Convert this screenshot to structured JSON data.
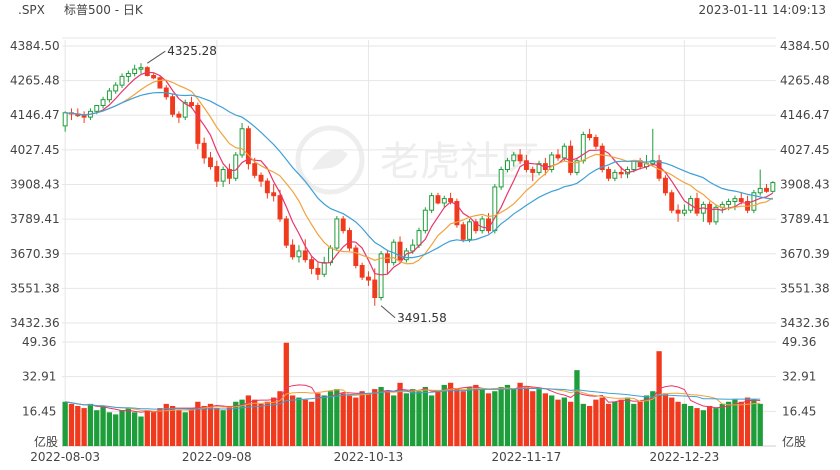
{
  "header": {
    "symbol": ".SPX",
    "title": "标普500 - 日K",
    "timestamp": "2023-01-11 14:09:13"
  },
  "watermark": {
    "text": "老虎社区",
    "icon": "tiger-logo-icon"
  },
  "colors": {
    "up": "#1e9e3a",
    "down": "#f03a1e",
    "ma5": "#e8356c",
    "ma10": "#f2a23c",
    "ma20": "#3ea0d8",
    "grid": "#e6e6e6",
    "text": "#444444"
  },
  "chart_data": {
    "type": "candlestick",
    "price_axis": {
      "ticks": [
        4384.5,
        4265.48,
        4146.47,
        4027.45,
        3908.43,
        3789.41,
        3670.39,
        3551.38,
        3432.36
      ],
      "tick_labels": [
        "4384.50",
        "4265.48",
        "4146.47",
        "4027.45",
        "3908.43",
        "3789.41",
        "3670.39",
        "3551.38",
        "3432.36"
      ],
      "range": [
        3432.36,
        4384.5
      ]
    },
    "volume_axis": {
      "ticks": [
        49.36,
        32.91,
        16.45
      ],
      "tick_labels": [
        "49.36",
        "32.91",
        "16.45"
      ],
      "unit": "亿股",
      "range": [
        0,
        49.36
      ]
    },
    "date_labels": [
      "2022-08-03",
      "2022-09-08",
      "2022-10-13",
      "2022-11-17",
      "2022-12-23"
    ],
    "annotations": {
      "high": {
        "value": 4325.28,
        "label": "4325.28",
        "index": 13
      },
      "low": {
        "value": 3491.58,
        "label": "3491.58",
        "index": 50
      }
    },
    "candles_ohlc": [
      [
        4110,
        4160,
        4090,
        4155
      ],
      [
        4155,
        4170,
        4130,
        4151
      ],
      [
        4151,
        4170,
        4140,
        4145
      ],
      [
        4145,
        4160,
        4120,
        4140
      ],
      [
        4140,
        4170,
        4130,
        4160
      ],
      [
        4160,
        4180,
        4150,
        4180
      ],
      [
        4180,
        4210,
        4170,
        4200
      ],
      [
        4200,
        4240,
        4190,
        4230
      ],
      [
        4230,
        4260,
        4220,
        4250
      ],
      [
        4250,
        4290,
        4240,
        4280
      ],
      [
        4280,
        4300,
        4260,
        4290
      ],
      [
        4290,
        4320,
        4280,
        4305
      ],
      [
        4305,
        4325.28,
        4290,
        4310
      ],
      [
        4310,
        4315,
        4280,
        4283
      ],
      [
        4283,
        4290,
        4270,
        4275
      ],
      [
        4275,
        4280,
        4240,
        4240
      ],
      [
        4240,
        4250,
        4200,
        4210
      ],
      [
        4210,
        4220,
        4140,
        4150
      ],
      [
        4150,
        4160,
        4120,
        4140
      ],
      [
        4140,
        4200,
        4130,
        4190
      ],
      [
        4190,
        4210,
        4170,
        4180
      ],
      [
        4180,
        4190,
        4030,
        4050
      ],
      [
        4050,
        4070,
        3980,
        4000
      ],
      [
        4000,
        4020,
        3960,
        3970
      ],
      [
        3970,
        3990,
        3900,
        3920
      ],
      [
        3920,
        3970,
        3900,
        3960
      ],
      [
        3960,
        3980,
        3910,
        3930
      ],
      [
        3930,
        4020,
        3920,
        4010
      ],
      [
        4010,
        4120,
        4000,
        4100
      ],
      [
        4100,
        4110,
        3960,
        3980
      ],
      [
        3980,
        4000,
        3930,
        3940
      ],
      [
        3940,
        3950,
        3900,
        3920
      ],
      [
        3920,
        3930,
        3860,
        3880
      ],
      [
        3880,
        3910,
        3850,
        3870
      ],
      [
        3870,
        3890,
        3780,
        3790
      ],
      [
        3790,
        3800,
        3690,
        3700
      ],
      [
        3700,
        3720,
        3650,
        3660
      ],
      [
        3660,
        3700,
        3640,
        3680
      ],
      [
        3680,
        3720,
        3640,
        3650
      ],
      [
        3650,
        3660,
        3600,
        3620
      ],
      [
        3620,
        3640,
        3580,
        3600
      ],
      [
        3600,
        3660,
        3590,
        3640
      ],
      [
        3640,
        3700,
        3630,
        3690
      ],
      [
        3690,
        3800,
        3680,
        3790
      ],
      [
        3790,
        3800,
        3740,
        3750
      ],
      [
        3750,
        3760,
        3680,
        3690
      ],
      [
        3690,
        3700,
        3620,
        3630
      ],
      [
        3630,
        3640,
        3580,
        3590
      ],
      [
        3590,
        3610,
        3560,
        3580
      ],
      [
        3580,
        3620,
        3491.58,
        3520
      ],
      [
        3520,
        3680,
        3510,
        3670
      ],
      [
        3670,
        3680,
        3600,
        3640
      ],
      [
        3640,
        3720,
        3630,
        3710
      ],
      [
        3710,
        3730,
        3640,
        3650
      ],
      [
        3650,
        3690,
        3640,
        3680
      ],
      [
        3680,
        3720,
        3670,
        3700
      ],
      [
        3700,
        3760,
        3690,
        3750
      ],
      [
        3750,
        3830,
        3740,
        3820
      ],
      [
        3820,
        3880,
        3810,
        3870
      ],
      [
        3870,
        3880,
        3840,
        3845
      ],
      [
        3845,
        3870,
        3830,
        3860
      ],
      [
        3860,
        3880,
        3840,
        3850
      ],
      [
        3850,
        3860,
        3760,
        3770
      ],
      [
        3770,
        3780,
        3710,
        3720
      ],
      [
        3720,
        3790,
        3710,
        3780
      ],
      [
        3780,
        3790,
        3740,
        3750
      ],
      [
        3750,
        3800,
        3740,
        3790
      ],
      [
        3790,
        3810,
        3740,
        3750
      ],
      [
        3750,
        3910,
        3740,
        3900
      ],
      [
        3900,
        3970,
        3890,
        3960
      ],
      [
        3960,
        4000,
        3950,
        3990
      ],
      [
        3990,
        4020,
        3970,
        4010
      ],
      [
        4010,
        4030,
        3980,
        3990
      ],
      [
        3990,
        4010,
        3950,
        3960
      ],
      [
        3960,
        3970,
        3920,
        3950
      ],
      [
        3950,
        3990,
        3940,
        3980
      ],
      [
        3980,
        4000,
        3940,
        3960
      ],
      [
        3960,
        4020,
        3950,
        4010
      ],
      [
        4010,
        4030,
        3990,
        4000
      ],
      [
        4000,
        4050,
        3990,
        4040
      ],
      [
        4040,
        4060,
        3940,
        3950
      ],
      [
        3950,
        4000,
        3940,
        3990
      ],
      [
        3990,
        4090,
        3980,
        4080
      ],
      [
        4080,
        4100,
        4060,
        4070
      ],
      [
        4070,
        4080,
        4030,
        4040
      ],
      [
        4040,
        4050,
        3950,
        3960
      ],
      [
        3960,
        3970,
        3920,
        3930
      ],
      [
        3930,
        3960,
        3920,
        3950
      ],
      [
        3950,
        3970,
        3930,
        3945
      ],
      [
        3945,
        3970,
        3930,
        3960
      ],
      [
        3960,
        3990,
        3950,
        3990
      ],
      [
        3990,
        4000,
        3960,
        3970
      ],
      [
        3970,
        4010,
        3960,
        3980
      ],
      [
        3980,
        4100,
        3970,
        3990
      ],
      [
        3990,
        4010,
        3920,
        3930
      ],
      [
        3930,
        3940,
        3870,
        3880
      ],
      [
        3880,
        3890,
        3810,
        3820
      ],
      [
        3820,
        3840,
        3780,
        3810
      ],
      [
        3810,
        3840,
        3800,
        3820
      ],
      [
        3820,
        3870,
        3810,
        3860
      ],
      [
        3860,
        3880,
        3800,
        3810
      ],
      [
        3810,
        3850,
        3780,
        3840
      ],
      [
        3840,
        3850,
        3770,
        3780
      ],
      [
        3780,
        3840,
        3770,
        3830
      ],
      [
        3830,
        3850,
        3810,
        3840
      ],
      [
        3840,
        3860,
        3820,
        3850
      ],
      [
        3850,
        3870,
        3820,
        3860
      ],
      [
        3860,
        3880,
        3840,
        3850
      ],
      [
        3850,
        3870,
        3810,
        3820
      ],
      [
        3820,
        3890,
        3810,
        3880
      ],
      [
        3880,
        3960,
        3870,
        3895
      ],
      [
        3895,
        3910,
        3880,
        3885
      ],
      [
        3885,
        3920,
        3880,
        3915
      ]
    ],
    "volumes": [
      21,
      20,
      19,
      18,
      20,
      17,
      19,
      16,
      15,
      17,
      18,
      16,
      14,
      17,
      16,
      18,
      20,
      19,
      17,
      16,
      18,
      21,
      19,
      20,
      18,
      17,
      19,
      21,
      22,
      24,
      22,
      20,
      21,
      23,
      26,
      49,
      24,
      23,
      22,
      21,
      25,
      24,
      26,
      27,
      25,
      24,
      23,
      26,
      25,
      27,
      28,
      26,
      24,
      30,
      25,
      27,
      26,
      28,
      24,
      26,
      29,
      30,
      27,
      26,
      28,
      29,
      27,
      25,
      26,
      28,
      29,
      27,
      30,
      28,
      26,
      27,
      25,
      24,
      22,
      23,
      21,
      36,
      20,
      19,
      22,
      23,
      20,
      21,
      22,
      23,
      20,
      21,
      24,
      26,
      45,
      25,
      23,
      21,
      20,
      19,
      18,
      17,
      19,
      18,
      20,
      21,
      22,
      21,
      23,
      22,
      20
    ]
  }
}
